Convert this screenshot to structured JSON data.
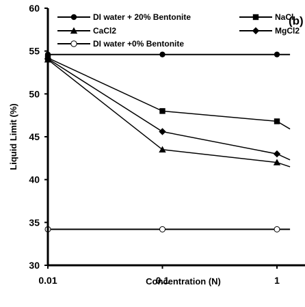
{
  "chart_data": {
    "type": "line",
    "panel_label": "(b)",
    "xlabel": "Concentration (N)",
    "ylabel": "Liquid Limit (%)",
    "x_scale": "log",
    "xlim": [
      0.01,
      1.3
    ],
    "ylim": [
      30,
      60
    ],
    "x_ticks": [
      0.01,
      0.1,
      1
    ],
    "x_tick_labels": [
      "0.01",
      "0.1",
      "1"
    ],
    "y_ticks": [
      30,
      35,
      40,
      45,
      50,
      55,
      60
    ],
    "y_tick_labels": [
      "30",
      "35",
      "40",
      "45",
      "50",
      "55",
      "60"
    ],
    "grid": false,
    "legend_position": "top",
    "series": [
      {
        "name": "DI water + 20% Bentonite",
        "marker": "circle-filled",
        "x": [
          0.01,
          0.1,
          1,
          1.3
        ],
        "y": [
          54.6,
          54.6,
          54.6,
          54.6
        ]
      },
      {
        "name": "NaCl",
        "marker": "square",
        "x": [
          0.01,
          0.1,
          1,
          1.3
        ],
        "y": [
          54.2,
          48.0,
          46.8,
          45.9
        ]
      },
      {
        "name": "CaCl2",
        "marker": "triangle",
        "x": [
          0.01,
          0.1,
          1,
          1.3
        ],
        "y": [
          54.0,
          43.5,
          42.0,
          41.5
        ]
      },
      {
        "name": "MgCl2",
        "marker": "diamond",
        "x": [
          0.01,
          0.1,
          1,
          1.3
        ],
        "y": [
          54.1,
          45.6,
          43.0,
          42.3
        ]
      },
      {
        "name": "DI water +0% Bentonite",
        "marker": "circle-open",
        "x": [
          0.01,
          0.1,
          1,
          1.3
        ],
        "y": [
          34.2,
          34.2,
          34.2,
          34.2
        ]
      }
    ]
  }
}
